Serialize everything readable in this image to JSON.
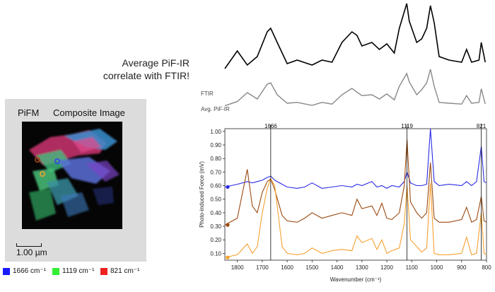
{
  "headline": {
    "line1": "Average PiF-IR",
    "line2": "correlate with FTIR!"
  },
  "image_panel": {
    "title": "PiFM",
    "subtitle": "Composite Image",
    "scalebar_label": "1.00 µm",
    "marker_colors": [
      "#a04a10",
      "#3344ee",
      "#f0a030"
    ]
  },
  "channel_legend": [
    {
      "label": "1666 cm⁻¹",
      "color": "#1a1aff"
    },
    {
      "label": "1119 cm⁻¹",
      "color": "#33ee33"
    },
    {
      "label": "821 cm⁻¹",
      "color": "#ee2222"
    }
  ],
  "chart_data": [
    {
      "type": "line",
      "labels": {
        "ftir": "FTIR",
        "avg": "Avg. PiF-IR"
      },
      "series": [
        {
          "name": "FTIR",
          "color": "#000000"
        },
        {
          "name": "Avg. PiF-IR",
          "color": "#888888"
        }
      ],
      "x": [
        1850,
        1800,
        1760,
        1720,
        1680,
        1666,
        1640,
        1600,
        1560,
        1500,
        1460,
        1420,
        1380,
        1340,
        1320,
        1300,
        1260,
        1230,
        1200,
        1170,
        1150,
        1120,
        1110,
        1080,
        1060,
        1040,
        1025,
        1010,
        990,
        950,
        900,
        880,
        860,
        830,
        821,
        805
      ]
    },
    {
      "type": "line",
      "title": "",
      "xlabel": "Wavenumber (cm⁻¹)",
      "ylabel": "Photo-induced Force (mV)",
      "xlim": [
        1850,
        800
      ],
      "ylim": [
        0.05,
        1.02
      ],
      "x_ticks": [
        1800,
        1700,
        1600,
        1500,
        1400,
        1300,
        1200,
        1100,
        1000,
        900,
        800
      ],
      "y_ticks": [
        0.1,
        0.2,
        0.3,
        0.4,
        0.5,
        0.6,
        0.7,
        0.8,
        0.9,
        1.0
      ],
      "markers": [
        {
          "label": "1666",
          "x": 1666
        },
        {
          "label": "1119",
          "x": 1119
        },
        {
          "label": "821",
          "x": 821
        }
      ],
      "x": [
        1850,
        1800,
        1760,
        1740,
        1720,
        1700,
        1680,
        1666,
        1650,
        1620,
        1600,
        1560,
        1530,
        1500,
        1460,
        1420,
        1380,
        1340,
        1320,
        1300,
        1260,
        1240,
        1220,
        1200,
        1180,
        1150,
        1130,
        1119,
        1105,
        1080,
        1060,
        1040,
        1025,
        1010,
        990,
        950,
        900,
        880,
        860,
        840,
        821,
        810,
        800
      ],
      "series": [
        {
          "name": "blue",
          "color": "#2a2ae6",
          "values": [
            0.59,
            0.61,
            0.63,
            0.62,
            0.63,
            0.64,
            0.66,
            0.67,
            0.64,
            0.61,
            0.59,
            0.58,
            0.59,
            0.62,
            0.58,
            0.59,
            0.6,
            0.59,
            0.61,
            0.6,
            0.63,
            0.59,
            0.6,
            0.58,
            0.6,
            0.59,
            0.63,
            0.7,
            0.62,
            0.6,
            0.6,
            0.61,
            1.02,
            0.63,
            0.6,
            0.61,
            0.6,
            0.63,
            0.6,
            0.63,
            0.89,
            0.63,
            0.62
          ]
        },
        {
          "name": "brown",
          "color": "#9a4a10",
          "values": [
            0.31,
            0.36,
            0.72,
            0.45,
            0.4,
            0.55,
            0.63,
            0.65,
            0.57,
            0.38,
            0.34,
            0.33,
            0.36,
            0.4,
            0.36,
            0.38,
            0.4,
            0.38,
            0.5,
            0.43,
            0.45,
            0.38,
            0.47,
            0.36,
            0.35,
            0.4,
            0.6,
            0.94,
            0.48,
            0.4,
            0.36,
            0.4,
            0.77,
            0.36,
            0.33,
            0.33,
            0.35,
            0.44,
            0.33,
            0.35,
            0.52,
            0.34,
            0.33
          ]
        },
        {
          "name": "orange",
          "color": "#f5a030",
          "values": [
            0.07,
            0.09,
            0.17,
            0.1,
            0.15,
            0.4,
            0.58,
            0.65,
            0.6,
            0.15,
            0.1,
            0.09,
            0.1,
            0.14,
            0.1,
            0.12,
            0.13,
            0.12,
            0.23,
            0.18,
            0.21,
            0.13,
            0.2,
            0.1,
            0.12,
            0.14,
            0.32,
            0.6,
            0.2,
            0.15,
            0.11,
            0.14,
            0.62,
            0.1,
            0.09,
            0.09,
            0.1,
            0.22,
            0.09,
            0.1,
            0.4,
            0.1,
            0.09
          ]
        }
      ]
    }
  ]
}
